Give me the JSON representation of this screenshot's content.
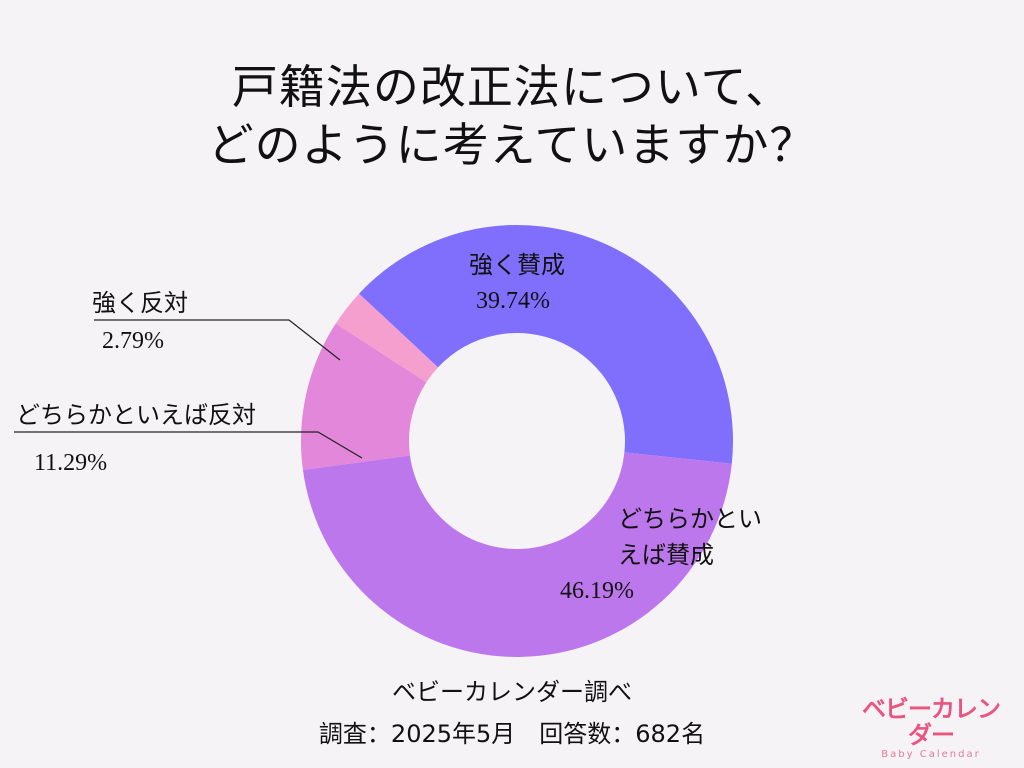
{
  "title": {
    "line1": "戸籍法の改正法について、",
    "line2": "どのように考えていますか？"
  },
  "chart_data": {
    "type": "pie",
    "variant": "donut",
    "title": "戸籍法の改正法について、どのように考えていますか？",
    "categories": [
      "強く賛成",
      "どちらかといえば賛成",
      "どちらかといえば反対",
      "強く反対"
    ],
    "values": [
      39.74,
      46.19,
      11.29,
      2.79
    ],
    "unit": "%",
    "colors": [
      "#7f6ffc",
      "#bd77ec",
      "#e387da",
      "#f59fcf"
    ],
    "start_angle_deg": 313,
    "direction": "clockwise",
    "inner_radius_ratio": 0.5,
    "legend": "none (labels on/next to slices)"
  },
  "labels": {
    "strong_agree": {
      "name": "強く賛成",
      "pct": "39.74%"
    },
    "agree": {
      "name_line1": "どちらかとい",
      "name_line2": "えば賛成",
      "pct": "46.19%"
    },
    "disagree": {
      "name": "どちらかといえば反対",
      "pct": "11.29%"
    },
    "strong_disagree": {
      "name": "強く反対",
      "pct": "2.79%"
    }
  },
  "footer": {
    "source": "ベビーカレンダー調べ",
    "survey": "調査：2025年5月　回答数：682名"
  },
  "logo": {
    "ja": "ベビーカレンダー",
    "en": "Baby Calendar"
  },
  "colors": {
    "background": "#f6f3f7",
    "logo": "#e9557f"
  }
}
